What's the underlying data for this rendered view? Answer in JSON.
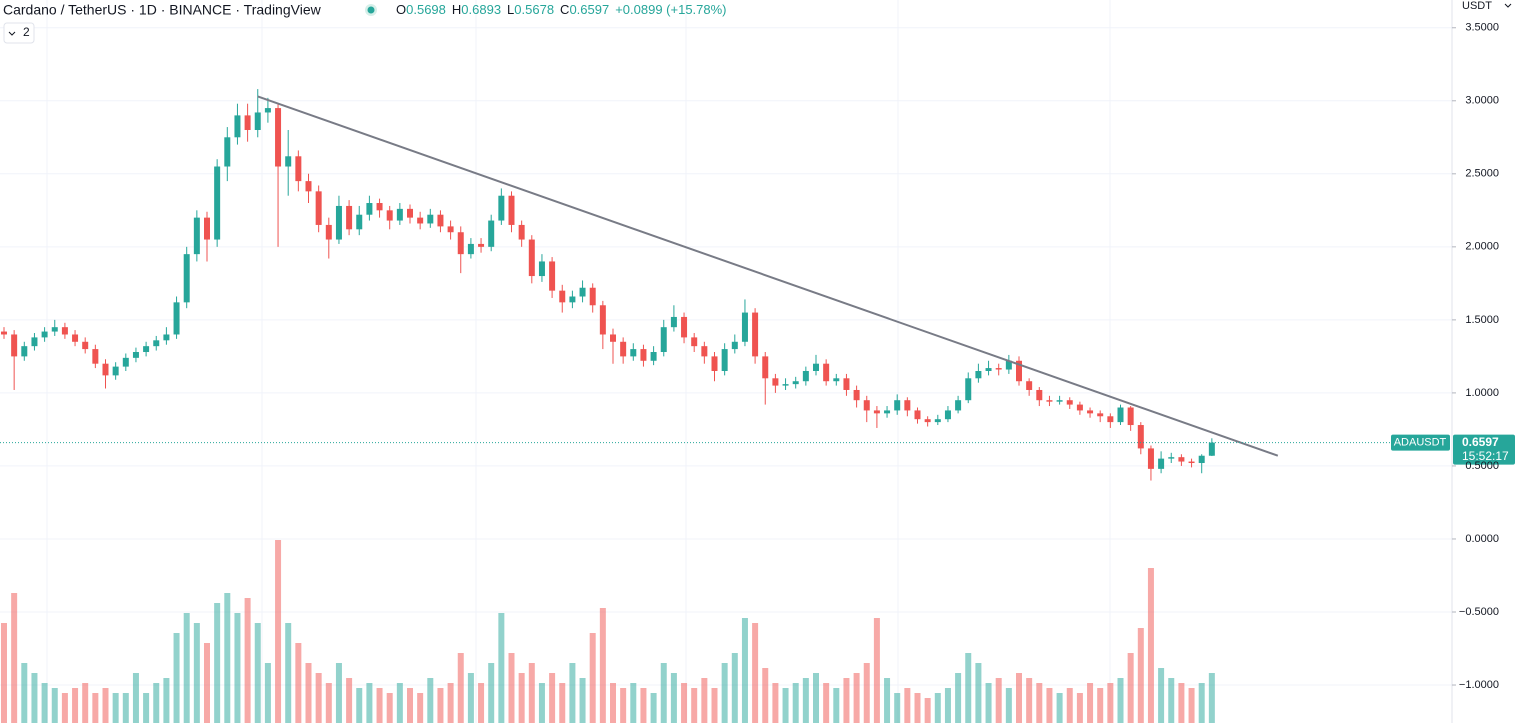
{
  "chart_data": {
    "type": "candlestick",
    "title": "Cardano / TetherUS · 1D · BINANCE · TradingView",
    "legend_values": [
      {
        "label": "O",
        "value": "0.5698"
      },
      {
        "label": "H",
        "value": "0.6893"
      },
      {
        "label": "L",
        "value": "0.5678"
      },
      {
        "label": "C",
        "value": "0.6597"
      }
    ],
    "change": "+0.0899 (+15.78%)",
    "indicators": "2",
    "currency": "USDT",
    "symbol": "ADAUSDT",
    "price_label": "0.6597",
    "countdown": "15:52:17",
    "up_color": "#26a69a",
    "down_color": "#ef5350",
    "ylim": [
      -1.26,
      3.69
    ],
    "yticks": [
      {
        "value": 3.5,
        "label": "3.5000"
      },
      {
        "value": 3,
        "label": "3.0000"
      },
      {
        "value": 2.5,
        "label": "2.5000"
      },
      {
        "value": 2,
        "label": "2.0000"
      },
      {
        "value": 1.5,
        "label": "1.5000"
      },
      {
        "value": 1,
        "label": "1.0000"
      },
      {
        "value": 0.5,
        "label": "0.5000"
      },
      {
        "value": 0,
        "label": "0.0000"
      },
      {
        "value": -0.5,
        "label": "−0.5000"
      },
      {
        "value": -1,
        "label": "−1.0000"
      }
    ],
    "grid": true,
    "candles": [
      [
        1.42,
        1.45,
        1.37,
        1.4
      ],
      [
        1.4,
        1.43,
        1.02,
        1.25
      ],
      [
        1.25,
        1.35,
        1.22,
        1.32
      ],
      [
        1.32,
        1.41,
        1.29,
        1.38
      ],
      [
        1.38,
        1.45,
        1.35,
        1.42
      ],
      [
        1.42,
        1.5,
        1.39,
        1.45
      ],
      [
        1.45,
        1.48,
        1.37,
        1.4
      ],
      [
        1.4,
        1.43,
        1.32,
        1.35
      ],
      [
        1.35,
        1.38,
        1.27,
        1.3
      ],
      [
        1.3,
        1.33,
        1.17,
        1.2
      ],
      [
        1.2,
        1.23,
        1.03,
        1.12
      ],
      [
        1.12,
        1.21,
        1.09,
        1.18
      ],
      [
        1.18,
        1.27,
        1.15,
        1.24
      ],
      [
        1.24,
        1.31,
        1.21,
        1.28
      ],
      [
        1.28,
        1.35,
        1.25,
        1.32
      ],
      [
        1.32,
        1.39,
        1.29,
        1.36
      ],
      [
        1.36,
        1.45,
        1.33,
        1.4
      ],
      [
        1.4,
        1.66,
        1.37,
        1.62
      ],
      [
        1.62,
        2.0,
        1.58,
        1.95
      ],
      [
        1.95,
        2.25,
        1.9,
        2.2
      ],
      [
        2.2,
        2.24,
        1.9,
        2.05
      ],
      [
        2.05,
        2.6,
        2.0,
        2.55
      ],
      [
        2.55,
        2.82,
        2.45,
        2.75
      ],
      [
        2.75,
        2.98,
        2.7,
        2.9
      ],
      [
        2.9,
        2.98,
        2.72,
        2.8
      ],
      [
        2.8,
        3.08,
        2.75,
        2.92
      ],
      [
        2.92,
        3.02,
        2.85,
        2.95
      ],
      [
        2.95,
        2.98,
        2.0,
        2.55
      ],
      [
        2.55,
        2.8,
        2.35,
        2.62
      ],
      [
        2.62,
        2.66,
        2.38,
        2.45
      ],
      [
        2.45,
        2.5,
        2.3,
        2.38
      ],
      [
        2.38,
        2.42,
        2.1,
        2.15
      ],
      [
        2.15,
        2.2,
        1.92,
        2.05
      ],
      [
        2.05,
        2.35,
        2.02,
        2.28
      ],
      [
        2.28,
        2.32,
        2.08,
        2.12
      ],
      [
        2.12,
        2.28,
        2.08,
        2.22
      ],
      [
        2.22,
        2.35,
        2.18,
        2.3
      ],
      [
        2.3,
        2.33,
        2.2,
        2.25
      ],
      [
        2.25,
        2.28,
        2.12,
        2.18
      ],
      [
        2.18,
        2.3,
        2.15,
        2.26
      ],
      [
        2.26,
        2.29,
        2.16,
        2.2
      ],
      [
        2.2,
        2.24,
        2.12,
        2.16
      ],
      [
        2.16,
        2.26,
        2.13,
        2.22
      ],
      [
        2.22,
        2.25,
        2.1,
        2.14
      ],
      [
        2.14,
        2.18,
        2.05,
        2.1
      ],
      [
        2.1,
        2.14,
        1.82,
        1.95
      ],
      [
        1.95,
        2.06,
        1.92,
        2.02
      ],
      [
        2.02,
        2.06,
        1.96,
        2.0
      ],
      [
        2.0,
        2.22,
        1.97,
        2.18
      ],
      [
        2.18,
        2.4,
        2.15,
        2.35
      ],
      [
        2.35,
        2.38,
        2.1,
        2.15
      ],
      [
        2.15,
        2.18,
        2.0,
        2.05
      ],
      [
        2.05,
        2.08,
        1.75,
        1.8
      ],
      [
        1.8,
        1.95,
        1.76,
        1.9
      ],
      [
        1.9,
        1.93,
        1.65,
        1.7
      ],
      [
        1.7,
        1.74,
        1.55,
        1.62
      ],
      [
        1.62,
        1.7,
        1.58,
        1.66
      ],
      [
        1.66,
        1.77,
        1.62,
        1.72
      ],
      [
        1.72,
        1.75,
        1.55,
        1.6
      ],
      [
        1.6,
        1.63,
        1.3,
        1.4
      ],
      [
        1.4,
        1.44,
        1.2,
        1.35
      ],
      [
        1.35,
        1.38,
        1.2,
        1.25
      ],
      [
        1.25,
        1.34,
        1.22,
        1.3
      ],
      [
        1.3,
        1.33,
        1.18,
        1.22
      ],
      [
        1.22,
        1.32,
        1.19,
        1.28
      ],
      [
        1.28,
        1.5,
        1.25,
        1.45
      ],
      [
        1.45,
        1.6,
        1.42,
        1.52
      ],
      [
        1.52,
        1.55,
        1.34,
        1.38
      ],
      [
        1.38,
        1.41,
        1.28,
        1.32
      ],
      [
        1.32,
        1.35,
        1.2,
        1.25
      ],
      [
        1.25,
        1.28,
        1.08,
        1.15
      ],
      [
        1.15,
        1.34,
        1.12,
        1.3
      ],
      [
        1.3,
        1.4,
        1.27,
        1.35
      ],
      [
        1.35,
        1.64,
        1.32,
        1.55
      ],
      [
        1.55,
        1.58,
        1.2,
        1.25
      ],
      [
        1.25,
        1.28,
        0.92,
        1.1
      ],
      [
        1.1,
        1.13,
        1.0,
        1.05
      ],
      [
        1.05,
        1.1,
        1.02,
        1.06
      ],
      [
        1.06,
        1.11,
        1.03,
        1.08
      ],
      [
        1.08,
        1.18,
        1.05,
        1.15
      ],
      [
        1.15,
        1.26,
        1.12,
        1.2
      ],
      [
        1.2,
        1.23,
        1.05,
        1.08
      ],
      [
        1.08,
        1.13,
        1.05,
        1.1
      ],
      [
        1.1,
        1.13,
        0.98,
        1.02
      ],
      [
        1.02,
        1.05,
        0.9,
        0.95
      ],
      [
        0.95,
        0.98,
        0.8,
        0.88
      ],
      [
        0.88,
        0.91,
        0.76,
        0.86
      ],
      [
        0.86,
        0.91,
        0.83,
        0.88
      ],
      [
        0.88,
        0.99,
        0.85,
        0.95
      ],
      [
        0.95,
        0.97,
        0.84,
        0.88
      ],
      [
        0.88,
        0.9,
        0.79,
        0.82
      ],
      [
        0.82,
        0.84,
        0.77,
        0.8
      ],
      [
        0.8,
        0.85,
        0.78,
        0.82
      ],
      [
        0.82,
        0.91,
        0.8,
        0.88
      ],
      [
        0.88,
        0.98,
        0.86,
        0.95
      ],
      [
        0.95,
        1.14,
        0.93,
        1.1
      ],
      [
        1.1,
        1.2,
        1.07,
        1.15
      ],
      [
        1.15,
        1.22,
        1.12,
        1.17
      ],
      [
        1.17,
        1.2,
        1.12,
        1.16
      ],
      [
        1.16,
        1.26,
        1.13,
        1.22
      ],
      [
        1.22,
        1.25,
        1.05,
        1.08
      ],
      [
        1.08,
        1.1,
        0.98,
        1.02
      ],
      [
        1.02,
        1.04,
        0.91,
        0.95
      ],
      [
        0.95,
        0.98,
        0.91,
        0.94
      ],
      [
        0.94,
        0.98,
        0.92,
        0.95
      ],
      [
        0.95,
        0.97,
        0.89,
        0.92
      ],
      [
        0.92,
        0.94,
        0.85,
        0.88
      ],
      [
        0.88,
        0.9,
        0.83,
        0.86
      ],
      [
        0.86,
        0.88,
        0.8,
        0.84
      ],
      [
        0.84,
        0.86,
        0.76,
        0.8
      ],
      [
        0.8,
        0.92,
        0.78,
        0.9
      ],
      [
        0.9,
        0.91,
        0.74,
        0.78
      ],
      [
        0.78,
        0.8,
        0.58,
        0.62
      ],
      [
        0.62,
        0.64,
        0.4,
        0.48
      ],
      [
        0.48,
        0.6,
        0.45,
        0.55
      ],
      [
        0.55,
        0.59,
        0.52,
        0.56
      ],
      [
        0.56,
        0.58,
        0.5,
        0.53
      ],
      [
        0.53,
        0.55,
        0.49,
        0.52
      ],
      [
        0.52,
        0.58,
        0.45,
        0.5698
      ],
      [
        0.5698,
        0.6893,
        0.5678,
        0.6597
      ]
    ],
    "volume": [
      100,
      130,
      60,
      50,
      40,
      35,
      30,
      35,
      40,
      30,
      35,
      30,
      30,
      50,
      30,
      40,
      45,
      90,
      110,
      100,
      80,
      120,
      130,
      110,
      125,
      100,
      60,
      183,
      100,
      80,
      60,
      50,
      40,
      60,
      45,
      35,
      40,
      35,
      30,
      40,
      35,
      30,
      45,
      35,
      40,
      70,
      50,
      40,
      60,
      110,
      70,
      50,
      60,
      40,
      50,
      40,
      60,
      45,
      90,
      115,
      40,
      35,
      40,
      35,
      30,
      60,
      50,
      40,
      35,
      45,
      35,
      60,
      70,
      105,
      100,
      55,
      40,
      35,
      40,
      45,
      50,
      40,
      35,
      45,
      50,
      60,
      105,
      45,
      30,
      35,
      30,
      25,
      30,
      35,
      50,
      70,
      60,
      40,
      45,
      35,
      50,
      45,
      40,
      35,
      30,
      35,
      30,
      40,
      35,
      40,
      45,
      70,
      95,
      155,
      55,
      45,
      40,
      35,
      40,
      50
    ],
    "trendline": {
      "x": [
        25.0,
        125.5
      ],
      "y": [
        3.03,
        0.57
      ]
    }
  }
}
